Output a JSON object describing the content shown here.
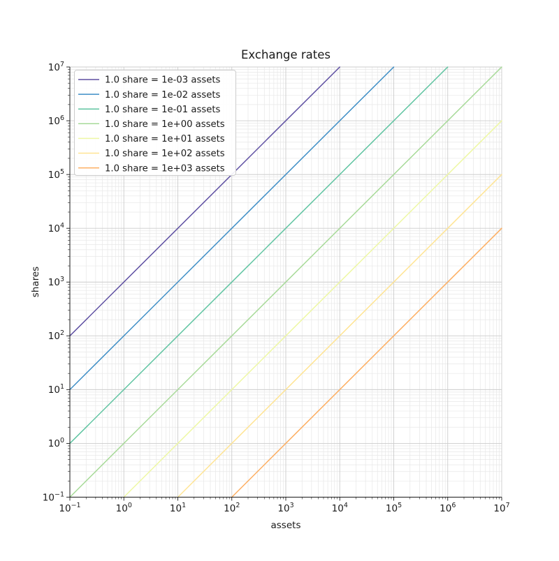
{
  "chart_data": {
    "type": "line",
    "title": "Exchange rates",
    "xlabel": "assets",
    "ylabel": "shares",
    "x_scale": "log",
    "y_scale": "log",
    "xlim": [
      0.1,
      10000000
    ],
    "ylim": [
      0.1,
      10000000
    ],
    "x_tick_exponents": [
      -1,
      0,
      1,
      2,
      3,
      4,
      5,
      6,
      7
    ],
    "y_tick_exponents": [
      -1,
      0,
      1,
      2,
      3,
      4,
      5,
      6,
      7
    ],
    "grid": "major+minor",
    "legend_position": "upper-left",
    "series": [
      {
        "name": "1.0 share = 1e-03 assets",
        "assets_per_share": 0.001,
        "color": "#5e4fa2",
        "x": [
          0.1,
          10000
        ],
        "y": [
          100,
          10000000
        ]
      },
      {
        "name": "1.0 share = 1e-02 assets",
        "assets_per_share": 0.01,
        "color": "#3e8ec6",
        "x": [
          0.1,
          100000
        ],
        "y": [
          10,
          10000000
        ]
      },
      {
        "name": "1.0 share = 1e-01 assets",
        "assets_per_share": 0.1,
        "color": "#5fc4a1",
        "x": [
          0.1,
          1000000
        ],
        "y": [
          1,
          10000000
        ]
      },
      {
        "name": "1.0 share = 1e+00 assets",
        "assets_per_share": 1,
        "color": "#a7da98",
        "x": [
          0.1,
          10000000
        ],
        "y": [
          0.1,
          10000000
        ]
      },
      {
        "name": "1.0 share = 1e+01 assets",
        "assets_per_share": 10,
        "color": "#eef8a4",
        "x": [
          1,
          10000000
        ],
        "y": [
          0.1,
          1000000
        ]
      },
      {
        "name": "1.0 share = 1e+02 assets",
        "assets_per_share": 100,
        "color": "#ffe493",
        "x": [
          10,
          10000000
        ],
        "y": [
          0.1,
          100000
        ]
      },
      {
        "name": "1.0 share = 1e+03 assets",
        "assets_per_share": 1000,
        "color": "#fdae61",
        "x": [
          100,
          10000000
        ],
        "y": [
          0.1,
          10000
        ]
      }
    ],
    "style": {
      "background": "#ffffff",
      "spine": "#1a1a1a",
      "grid_major": "#cccccc",
      "grid_minor": "#e7e7e7",
      "text": "#1a1a1a",
      "legend_border": "#cccccc",
      "legend_fill": "#ffffff"
    }
  }
}
